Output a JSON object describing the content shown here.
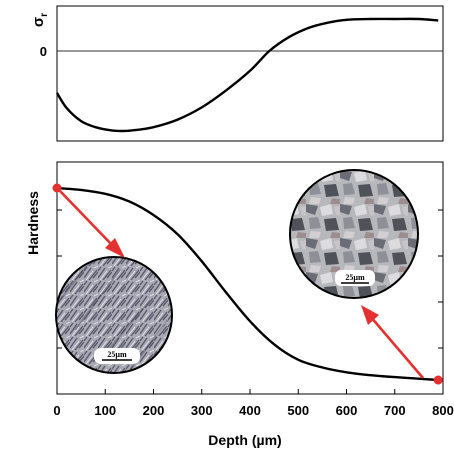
{
  "chart_data": [
    {
      "type": "line",
      "panel": "top",
      "ylabel": "σr",
      "ylabel_base": "σ",
      "ylabel_sub": "r",
      "zero_label": "0",
      "xlim": [
        0,
        800
      ],
      "ylim": [
        -1.0,
        0.45
      ],
      "zero_line": true,
      "grid": false,
      "x": [
        0,
        20,
        50,
        80,
        110,
        135,
        160,
        200,
        250,
        300,
        350,
        400,
        440,
        480,
        520,
        560,
        600,
        650,
        700,
        750,
        790
      ],
      "y": [
        -0.55,
        -0.75,
        -0.92,
        -1.0,
        -1.04,
        -1.05,
        -1.04,
        -1.0,
        -0.9,
        -0.74,
        -0.52,
        -0.26,
        0.0,
        0.18,
        0.3,
        0.37,
        0.41,
        0.42,
        0.42,
        0.42,
        0.4
      ],
      "color": "#000000"
    },
    {
      "type": "line",
      "panel": "bottom",
      "ylabel": "Hardness",
      "xlabel": "Depth (µm)",
      "xlim": [
        0,
        800
      ],
      "xticks": [
        "0",
        "100",
        "200",
        "300",
        "400",
        "500",
        "600",
        "700",
        "800"
      ],
      "ylim": [
        0,
        1
      ],
      "grid": false,
      "x": [
        0,
        50,
        100,
        150,
        200,
        250,
        300,
        350,
        400,
        450,
        500,
        550,
        600,
        650,
        700,
        750,
        790
      ],
      "y": [
        1.0,
        0.99,
        0.97,
        0.93,
        0.86,
        0.76,
        0.62,
        0.46,
        0.31,
        0.19,
        0.11,
        0.07,
        0.045,
        0.03,
        0.02,
        0.012,
        0.005
      ],
      "endpoints": [
        {
          "x": 0,
          "y": 1.0,
          "color": "#e53030"
        },
        {
          "x": 790,
          "y": 0.005,
          "color": "#e53030"
        }
      ],
      "insets": [
        {
          "name": "micrograph-left",
          "scale_label": "25µm",
          "texture": "needle-like grains"
        },
        {
          "name": "micrograph-right",
          "scale_label": "25µm",
          "texture": "polygonal grains"
        }
      ],
      "arrow_color": "#e53030",
      "color": "#000000"
    }
  ]
}
